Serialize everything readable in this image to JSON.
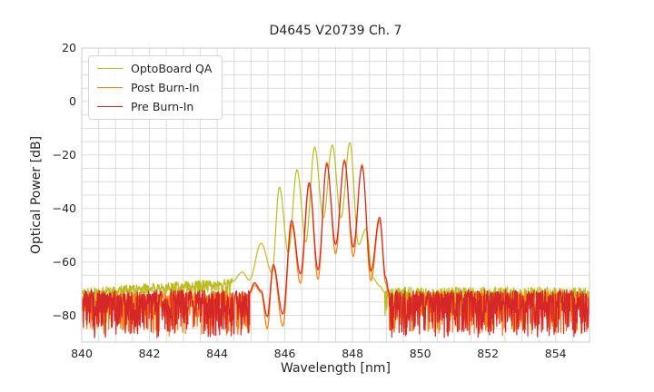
{
  "chart_data": {
    "type": "line",
    "title": "D4645 V20739 Ch. 7",
    "xlabel": "Wavelength [nm]",
    "ylabel": "Optical Power [dB]",
    "xlim": [
      840,
      855
    ],
    "ylim": [
      -90,
      20
    ],
    "xticks": [
      {
        "label": "840",
        "value": 840
      },
      {
        "label": "842",
        "value": 842
      },
      {
        "label": "844",
        "value": 844
      },
      {
        "label": "846",
        "value": 846
      },
      {
        "label": "848",
        "value": 848
      },
      {
        "label": "850",
        "value": 850
      },
      {
        "label": "852",
        "value": 852
      },
      {
        "label": "854",
        "value": 854
      }
    ],
    "yticks": [
      {
        "label": "20",
        "value": 20
      },
      {
        "label": "0",
        "value": 0
      },
      {
        "label": "−20",
        "value": -20
      },
      {
        "label": "−40",
        "value": -40
      },
      {
        "label": "−60",
        "value": -60
      },
      {
        "label": "−80",
        "value": -80
      }
    ],
    "grid": {
      "x_step": 0.5,
      "y_step": 5,
      "color": "#dcdcdc",
      "spine_color": "#cccccc"
    },
    "legend": {
      "position": "upper-left"
    },
    "series": [
      {
        "name": "OptoBoard QA",
        "id": "optoboard-qa",
        "color": "#bcbd22",
        "seed": 7,
        "segments": [
          {
            "type": "noise",
            "from": 840.0,
            "to": 844.45,
            "base": -71.0,
            "base_end": -67.3,
            "up": 2.6,
            "down": 6,
            "down_pow": 5
          },
          {
            "type": "smooth",
            "anchors": [
              [
                844.45,
                -67.3
              ],
              [
                844.75,
                -63.8
              ],
              [
                844.95,
                -66.8
              ],
              [
                845.3,
                -53.0
              ],
              [
                845.62,
                -64.0
              ],
              [
                845.84,
                -32.0
              ],
              [
                846.1,
                -56.5
              ],
              [
                846.36,
                -25.5
              ],
              [
                846.62,
                -52.5
              ],
              [
                846.88,
                -17.0
              ],
              [
                847.14,
                -43.5
              ],
              [
                847.4,
                -16.2
              ],
              [
                847.66,
                -43.5
              ],
              [
                847.92,
                -15.4
              ],
              [
                848.18,
                -53.5
              ],
              [
                848.4,
                -47.5
              ],
              [
                848.6,
                -66.0
              ],
              [
                848.8,
                -69.0
              ],
              [
                848.95,
                -71.3
              ]
            ]
          },
          {
            "type": "noise",
            "from": 848.95,
            "to": 855.0,
            "base": -70.8,
            "base_end": -70.8,
            "up": 3.0,
            "down": 10,
            "down_pow": 3.2
          }
        ]
      },
      {
        "name": "Post Burn-In",
        "id": "post-burn-in",
        "color": "#ff7f0e",
        "seed": 13,
        "segments": [
          {
            "type": "noise",
            "from": 840.0,
            "to": 844.96,
            "base": -72.2,
            "base_end": -71.9,
            "up": 2.2,
            "down": 15,
            "down_pow": 2.3
          },
          {
            "type": "smooth",
            "anchors": [
              [
                844.96,
                -72.0
              ],
              [
                845.1,
                -68.6
              ],
              [
                845.3,
                -71.5
              ],
              [
                845.48,
                -85.0
              ],
              [
                845.66,
                -62.0
              ],
              [
                845.94,
                -84.0
              ],
              [
                846.2,
                -46.0
              ],
              [
                846.46,
                -68.0
              ],
              [
                846.72,
                -31.2
              ],
              [
                846.98,
                -66.5
              ],
              [
                847.24,
                -22.7
              ],
              [
                847.5,
                -57.0
              ],
              [
                847.76,
                -21.7
              ],
              [
                848.02,
                -58.0
              ],
              [
                848.28,
                -23.5
              ],
              [
                848.54,
                -67.0
              ],
              [
                848.8,
                -44.5
              ],
              [
                848.98,
                -68.0
              ],
              [
                849.08,
                -73.0
              ]
            ]
          },
          {
            "type": "noise",
            "from": 849.08,
            "to": 855.0,
            "base": -72.0,
            "base_end": -72.0,
            "up": 2.2,
            "down": 15,
            "down_pow": 2.2
          }
        ]
      },
      {
        "name": "Pre Burn-In",
        "id": "pre-burn-in",
        "color": "#d62728",
        "seed": 42,
        "segments": [
          {
            "type": "noise",
            "from": 840.0,
            "to": 844.96,
            "base": -71.3,
            "base_end": -71.3,
            "up": 2.0,
            "down": 16.5,
            "down_pow": 2.1
          },
          {
            "type": "smooth",
            "anchors": [
              [
                844.96,
                -71.3
              ],
              [
                845.1,
                -67.8
              ],
              [
                845.3,
                -70.8
              ],
              [
                845.48,
                -80.5
              ],
              [
                845.66,
                -61.0
              ],
              [
                845.94,
                -79.5
              ],
              [
                846.2,
                -44.5
              ],
              [
                846.46,
                -64.5
              ],
              [
                846.72,
                -30.3
              ],
              [
                846.98,
                -63.0
              ],
              [
                847.24,
                -23.4
              ],
              [
                847.5,
                -53.5
              ],
              [
                847.76,
                -22.4
              ],
              [
                848.02,
                -54.5
              ],
              [
                848.28,
                -24.2
              ],
              [
                848.54,
                -63.5
              ],
              [
                848.8,
                -43.3
              ],
              [
                848.98,
                -66.0
              ],
              [
                849.08,
                -71.5
              ]
            ]
          },
          {
            "type": "noise",
            "from": 849.08,
            "to": 855.0,
            "base": -71.3,
            "base_end": -71.3,
            "up": 2.0,
            "down": 16.5,
            "down_pow": 2.1
          }
        ]
      }
    ]
  }
}
